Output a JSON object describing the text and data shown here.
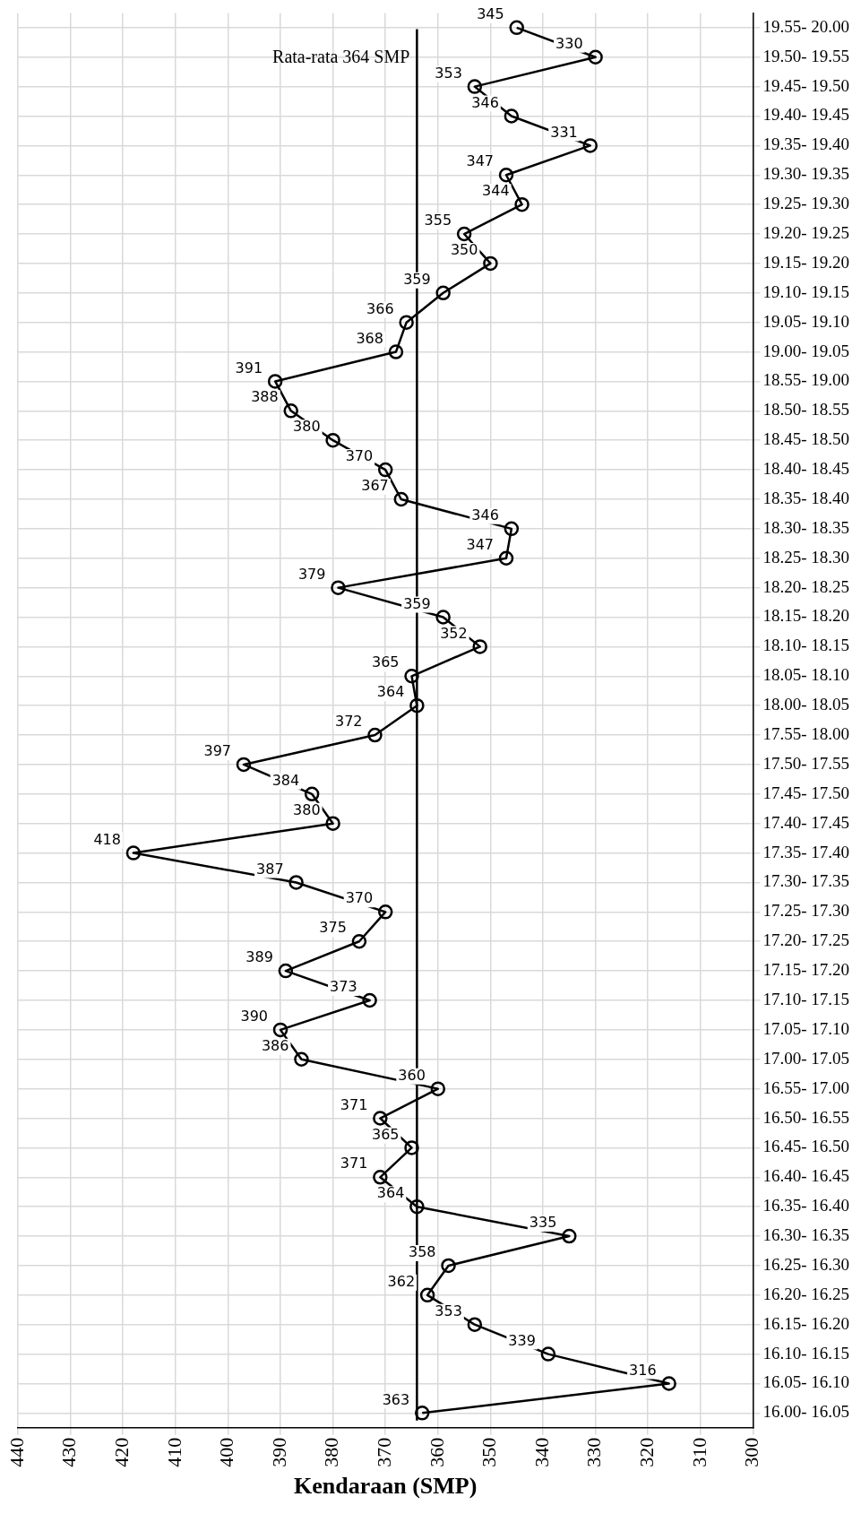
{
  "chart_data": {
    "type": "line",
    "orientation": "horizontal",
    "xlabel": "Kendaraan (SMP)",
    "categories": [
      "19.55- 20.00",
      "19.50- 19.55",
      "19.45- 19.50",
      "19.40- 19.45",
      "19.35- 19.40",
      "19.30- 19.35",
      "19.25- 19.30",
      "19.20- 19.25",
      "19.15- 19.20",
      "19.10- 19.15",
      "19.05- 19.10",
      "19.00- 19.05",
      "18.55- 19.00",
      "18.50- 18.55",
      "18.45- 18.50",
      "18.40- 18.45",
      "18.35- 18.40",
      "18.30- 18.35",
      "18.25- 18.30",
      "18.20- 18.25",
      "18.15- 18.20",
      "18.10- 18.15",
      "18.05- 18.10",
      "18.00- 18.05",
      "17.55- 18.00",
      "17.50- 17.55",
      "17.45- 17.50",
      "17.40- 17.45",
      "17.35- 17.40",
      "17.30- 17.35",
      "17.25- 17.30",
      "17.20- 17.25",
      "17.15- 17.20",
      "17.10- 17.15",
      "17.05- 17.10",
      "17.00- 17.05",
      "16.55- 17.00",
      "16.50- 16.55",
      "16.45- 16.50",
      "16.40- 16.45",
      "16.35- 16.40",
      "16.30- 16.35",
      "16.25- 16.30",
      "16.20- 16.25",
      "16.15- 16.20",
      "16.10- 16.15",
      "16.05- 16.10",
      "16.00- 16.05"
    ],
    "series": [
      {
        "color": "#000000",
        "values": [
          345,
          330,
          353,
          346,
          331,
          347,
          344,
          355,
          350,
          359,
          366,
          368,
          391,
          388,
          380,
          370,
          367,
          346,
          347,
          379,
          359,
          352,
          365,
          364,
          372,
          397,
          384,
          380,
          418,
          387,
          370,
          375,
          389,
          373,
          390,
          386,
          360,
          371,
          365,
          371,
          364,
          335,
          358,
          362,
          353,
          339,
          316,
          363
        ]
      }
    ],
    "xlim": [
      440,
      300
    ],
    "xticks": [
      440,
      430,
      420,
      410,
      400,
      390,
      380,
      370,
      360,
      350,
      340,
      330,
      320,
      310,
      300
    ],
    "ref_lines": [
      {
        "axis": "x",
        "value": 364,
        "label": "Rata-rata 364 SMP",
        "color": "#000000"
      }
    ],
    "grid": true,
    "marker": "circle",
    "line_style": "solid",
    "data_labels": true,
    "legend": false
  }
}
